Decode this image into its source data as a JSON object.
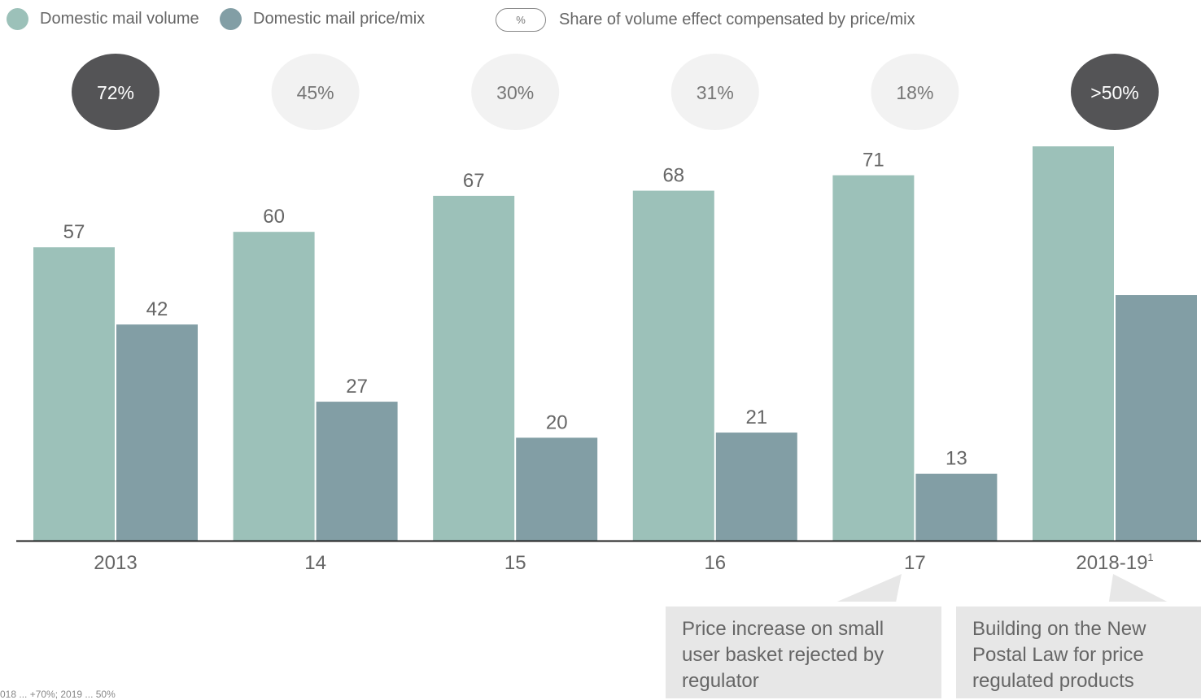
{
  "legend": {
    "volume_label": "Domestic mail volume",
    "price_label": "Domestic mail price/mix",
    "share_symbol": "%",
    "share_label": "Share of volume effect compensated by price/mix"
  },
  "colors": {
    "volume": "#9cc1b9",
    "price_mix": "#829ea5",
    "share_dark_bg": "#545456",
    "share_light_bg": "#f2f2f2",
    "axis": "#222222",
    "callout_bg": "#e7e7e7"
  },
  "chart_data": {
    "type": "bar",
    "categories": [
      "2013",
      "14",
      "15",
      "16",
      "17",
      "2018-19"
    ],
    "category_superscripts": [
      "",
      "",
      "",
      "",
      "",
      "1"
    ],
    "series": [
      {
        "name": "Domestic mail volume",
        "values": [
          57,
          60,
          67,
          68,
          71,
          null
        ],
        "labels": [
          "57",
          "60",
          "67",
          "68",
          "71",
          ""
        ]
      },
      {
        "name": "Domestic mail price/mix",
        "values": [
          42,
          27,
          20,
          21,
          13,
          null
        ],
        "labels": [
          "42",
          "27",
          "20",
          "21",
          "13",
          ""
        ]
      }
    ],
    "share_compensated": [
      {
        "label": "72%",
        "highlight": true
      },
      {
        "label": "45%",
        "highlight": false
      },
      {
        "label": "30%",
        "highlight": false
      },
      {
        "label": "31%",
        "highlight": false
      },
      {
        "label": "18%",
        "highlight": false
      },
      {
        "label": ">50%",
        "highlight": true
      }
    ]
  },
  "callouts": [
    {
      "text": "Price increase on small user basket rejected by regulator"
    },
    {
      "text": "Building on the New Postal Law for price regulated products"
    }
  ],
  "footnote": "018 ... +70%; 2019 ... 50%"
}
